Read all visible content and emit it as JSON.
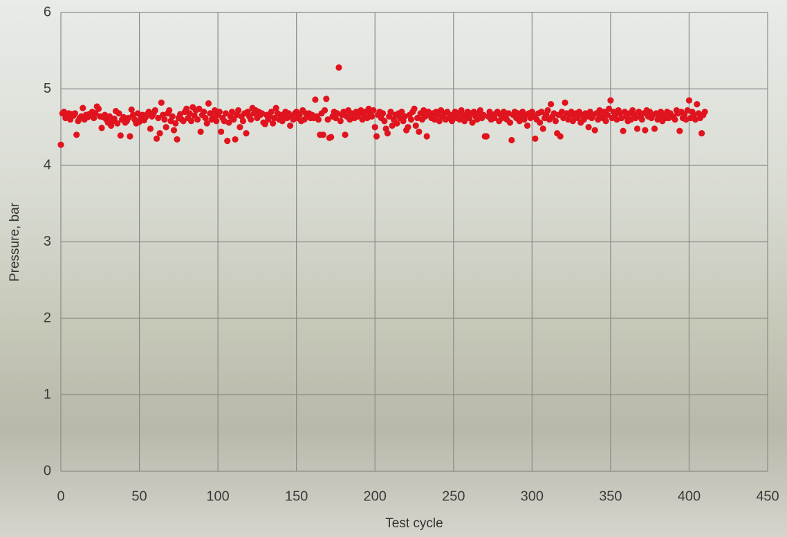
{
  "chart_data": {
    "type": "scatter",
    "x_label": "Test cycle",
    "y_label": "Pressure, bar",
    "xlim": [
      0,
      450
    ],
    "xticks": [
      0,
      50,
      100,
      150,
      200,
      250,
      300,
      350,
      400,
      450
    ],
    "ylim": [
      0,
      6
    ],
    "yticks": [
      0,
      1,
      2,
      3,
      4,
      5,
      6
    ],
    "grid": true,
    "series": [
      {
        "color": "#e0141e",
        "x": [
          0,
          1,
          2,
          3,
          4,
          5,
          6,
          7,
          8,
          9,
          10,
          11,
          12,
          13,
          14,
          15,
          16,
          17,
          18,
          19,
          20,
          21,
          22,
          23,
          24,
          25,
          26,
          27,
          28,
          29,
          30,
          31,
          32,
          33,
          34,
          35,
          36,
          37,
          38,
          39,
          40,
          41,
          42,
          43,
          44,
          45,
          46,
          47,
          48,
          49,
          50,
          51,
          52,
          53,
          54,
          55,
          56,
          57,
          58,
          59,
          60,
          61,
          62,
          63,
          64,
          65,
          66,
          67,
          68,
          69,
          70,
          71,
          72,
          73,
          74,
          75,
          76,
          77,
          78,
          79,
          80,
          81,
          82,
          83,
          84,
          85,
          86,
          87,
          88,
          89,
          90,
          91,
          92,
          93,
          94,
          95,
          96,
          97,
          98,
          99,
          100,
          101,
          102,
          103,
          104,
          105,
          106,
          107,
          108,
          109,
          110,
          111,
          112,
          113,
          114,
          115,
          116,
          117,
          118,
          119,
          120,
          121,
          122,
          123,
          124,
          125,
          126,
          127,
          128,
          129,
          130,
          131,
          132,
          133,
          134,
          135,
          136,
          137,
          138,
          139,
          140,
          141,
          142,
          143,
          144,
          145,
          146,
          147,
          148,
          149,
          150,
          151,
          152,
          153,
          154,
          155,
          156,
          157,
          158,
          159,
          160,
          161,
          162,
          163,
          164,
          165,
          166,
          167,
          168,
          169,
          170,
          171,
          172,
          173,
          174,
          175,
          176,
          177,
          178,
          179,
          180,
          181,
          182,
          183,
          184,
          185,
          186,
          187,
          188,
          189,
          190,
          191,
          192,
          193,
          194,
          195,
          196,
          197,
          198,
          199,
          200,
          201,
          202,
          203,
          204,
          205,
          206,
          207,
          208,
          209,
          210,
          211,
          212,
          213,
          214,
          215,
          216,
          217,
          218,
          219,
          220,
          221,
          222,
          223,
          224,
          225,
          226,
          227,
          228,
          229,
          230,
          231,
          232,
          233,
          234,
          235,
          236,
          237,
          238,
          239,
          240,
          241,
          242,
          243,
          244,
          245,
          246,
          247,
          248,
          249,
          250,
          251,
          252,
          253,
          254,
          255,
          256,
          257,
          258,
          259,
          260,
          261,
          262,
          263,
          264,
          265,
          266,
          267,
          268,
          269,
          270,
          271,
          272,
          273,
          274,
          275,
          276,
          277,
          278,
          279,
          280,
          281,
          282,
          283,
          284,
          285,
          286,
          287,
          288,
          289,
          290,
          291,
          292,
          293,
          294,
          295,
          296,
          297,
          298,
          299,
          300,
          301,
          302,
          303,
          304,
          305,
          306,
          307,
          308,
          309,
          310,
          311,
          312,
          313,
          314,
          315,
          316,
          317,
          318,
          319,
          320,
          321,
          322,
          323,
          324,
          325,
          326,
          327,
          328,
          329,
          330,
          331,
          332,
          333,
          334,
          335,
          336,
          337,
          338,
          339,
          340,
          341,
          342,
          343,
          344,
          345,
          346,
          347,
          348,
          349,
          350,
          351,
          352,
          353,
          354,
          355,
          356,
          357,
          358,
          359,
          360,
          361,
          362,
          363,
          364,
          365,
          366,
          367,
          368,
          369,
          370,
          371,
          372,
          373,
          374,
          375,
          376,
          377,
          378,
          379,
          380,
          381,
          382,
          383,
          384,
          385,
          386,
          387,
          388,
          389,
          390,
          391,
          392,
          393,
          394,
          395,
          396,
          397,
          398,
          399,
          400,
          401,
          402,
          403,
          404,
          405,
          406,
          407,
          408,
          409,
          410
        ],
        "values": [
          4.27,
          4.68,
          4.7,
          4.62,
          4.66,
          4.68,
          4.6,
          4.67,
          4.65,
          4.68,
          4.4,
          4.58,
          4.62,
          4.64,
          4.75,
          4.6,
          4.66,
          4.63,
          4.67,
          4.65,
          4.7,
          4.62,
          4.68,
          4.77,
          4.74,
          4.64,
          4.49,
          4.63,
          4.66,
          4.6,
          4.56,
          4.64,
          4.52,
          4.58,
          4.61,
          4.71,
          4.55,
          4.68,
          4.39,
          4.6,
          4.63,
          4.56,
          4.58,
          4.62,
          4.38,
          4.73,
          4.66,
          4.6,
          4.55,
          4.68,
          4.57,
          4.62,
          4.66,
          4.59,
          4.63,
          4.67,
          4.7,
          4.48,
          4.64,
          4.68,
          4.72,
          4.35,
          4.62,
          4.42,
          4.82,
          4.66,
          4.6,
          4.5,
          4.68,
          4.72,
          4.58,
          4.64,
          4.46,
          4.55,
          4.34,
          4.62,
          4.67,
          4.6,
          4.58,
          4.7,
          4.74,
          4.62,
          4.68,
          4.58,
          4.76,
          4.65,
          4.72,
          4.6,
          4.74,
          4.44,
          4.66,
          4.7,
          4.62,
          4.55,
          4.81,
          4.68,
          4.6,
          4.64,
          4.72,
          4.58,
          4.66,
          4.7,
          4.44,
          4.62,
          4.58,
          4.68,
          4.32,
          4.56,
          4.64,
          4.7,
          4.6,
          4.34,
          4.66,
          4.72,
          4.5,
          4.64,
          4.58,
          4.68,
          4.42,
          4.7,
          4.64,
          4.6,
          4.75,
          4.68,
          4.72,
          4.62,
          4.7,
          4.66,
          4.68,
          4.56,
          4.54,
          4.66,
          4.6,
          4.64,
          4.7,
          4.55,
          4.62,
          4.75,
          4.68,
          4.6,
          4.66,
          4.58,
          4.64,
          4.7,
          4.62,
          4.68,
          4.52,
          4.64,
          4.6,
          4.68,
          4.7,
          4.62,
          4.66,
          4.58,
          4.72,
          4.6,
          4.68,
          4.64,
          4.68,
          4.62,
          4.66,
          4.62,
          4.86,
          4.64,
          4.6,
          4.4,
          4.68,
          4.4,
          4.72,
          4.87,
          4.6,
          4.36,
          4.37,
          4.64,
          4.7,
          4.62,
          4.68,
          5.28,
          4.58,
          4.66,
          4.7,
          4.4,
          4.64,
          4.72,
          4.6,
          4.68,
          4.66,
          4.62,
          4.7,
          4.64,
          4.68,
          4.72,
          4.6,
          4.66,
          4.7,
          4.62,
          4.74,
          4.68,
          4.64,
          4.72,
          4.5,
          4.38,
          4.66,
          4.7,
          4.62,
          4.68,
          4.58,
          4.48,
          4.42,
          4.64,
          4.7,
          4.52,
          4.6,
          4.66,
          4.55,
          4.68,
          4.62,
          4.7,
          4.58,
          4.64,
          4.46,
          4.5,
          4.66,
          4.6,
          4.7,
          4.74,
          4.52,
          4.62,
          4.44,
          4.68,
          4.6,
          4.72,
          4.64,
          4.38,
          4.7,
          4.66,
          4.62,
          4.68,
          4.6,
          4.7,
          4.66,
          4.58,
          4.72,
          4.64,
          4.68,
          4.6,
          4.7,
          4.62,
          4.66,
          4.58,
          4.64,
          4.7,
          4.62,
          4.68,
          4.6,
          4.72,
          4.66,
          4.58,
          4.64,
          4.7,
          4.62,
          4.68,
          4.56,
          4.7,
          4.64,
          4.6,
          4.68,
          4.72,
          4.62,
          4.66,
          4.38,
          4.38,
          4.64,
          4.7,
          4.6,
          4.66,
          4.62,
          4.68,
          4.7,
          4.58,
          4.66,
          4.62,
          4.7,
          4.64,
          4.6,
          4.68,
          4.56,
          4.33,
          4.66,
          4.7,
          4.62,
          4.68,
          4.58,
          4.64,
          4.7,
          4.6,
          4.66,
          4.52,
          4.68,
          4.62,
          4.7,
          4.64,
          4.35,
          4.6,
          4.68,
          4.56,
          4.7,
          4.48,
          4.62,
          4.66,
          4.72,
          4.6,
          4.8,
          4.64,
          4.68,
          4.58,
          4.42,
          4.66,
          4.38,
          4.7,
          4.62,
          4.82,
          4.68,
          4.6,
          4.66,
          4.7,
          4.58,
          4.64,
          4.68,
          4.62,
          4.7,
          4.56,
          4.66,
          4.6,
          4.68,
          4.64,
          4.5,
          4.7,
          4.62,
          4.66,
          4.46,
          4.68,
          4.6,
          4.72,
          4.64,
          4.62,
          4.7,
          4.58,
          4.66,
          4.74,
          4.85,
          4.62,
          4.7,
          4.66,
          4.6,
          4.72,
          4.68,
          4.62,
          4.45,
          4.7,
          4.64,
          4.58,
          4.68,
          4.6,
          4.72,
          4.66,
          4.62,
          4.48,
          4.7,
          4.64,
          4.6,
          4.68,
          4.46,
          4.72,
          4.64,
          4.7,
          4.62,
          4.66,
          4.48,
          4.68,
          4.6,
          4.64,
          4.7,
          4.58,
          4.66,
          4.62,
          4.7,
          4.62,
          4.68,
          4.64,
          4.64,
          4.6,
          4.72,
          4.68,
          4.45,
          4.7,
          4.62,
          4.66,
          4.6,
          4.72,
          4.85,
          4.62,
          4.7,
          4.66,
          4.6,
          4.8,
          4.68,
          4.62,
          4.42,
          4.66,
          4.7
        ]
      }
    ]
  }
}
